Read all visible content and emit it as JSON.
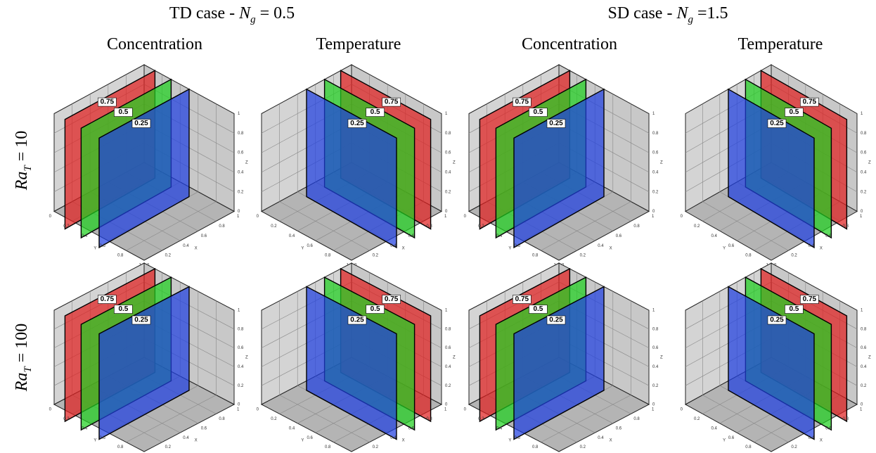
{
  "headers": [
    {
      "prefix": "TD case - ",
      "symbol": "N",
      "subscript": "g",
      "value": "= 0.5"
    },
    {
      "prefix": "SD case - ",
      "symbol": "N",
      "subscript": "g",
      "value": "=1.5"
    }
  ],
  "columns": [
    "Concentration",
    "Temperature",
    "Concentration",
    "Temperature"
  ],
  "rows": [
    {
      "symbol": "Ra",
      "subscript": "T",
      "value": "= 10"
    },
    {
      "symbol": "Ra",
      "subscript": "T",
      "value": "= 100"
    }
  ],
  "contours": [
    "0.75",
    "0.5",
    "0.25"
  ],
  "axes": {
    "ticks": [
      "0",
      "0.2",
      "0.4",
      "0.6",
      "0.8",
      "1"
    ],
    "labels": [
      "X",
      "Y",
      "Z"
    ]
  }
}
